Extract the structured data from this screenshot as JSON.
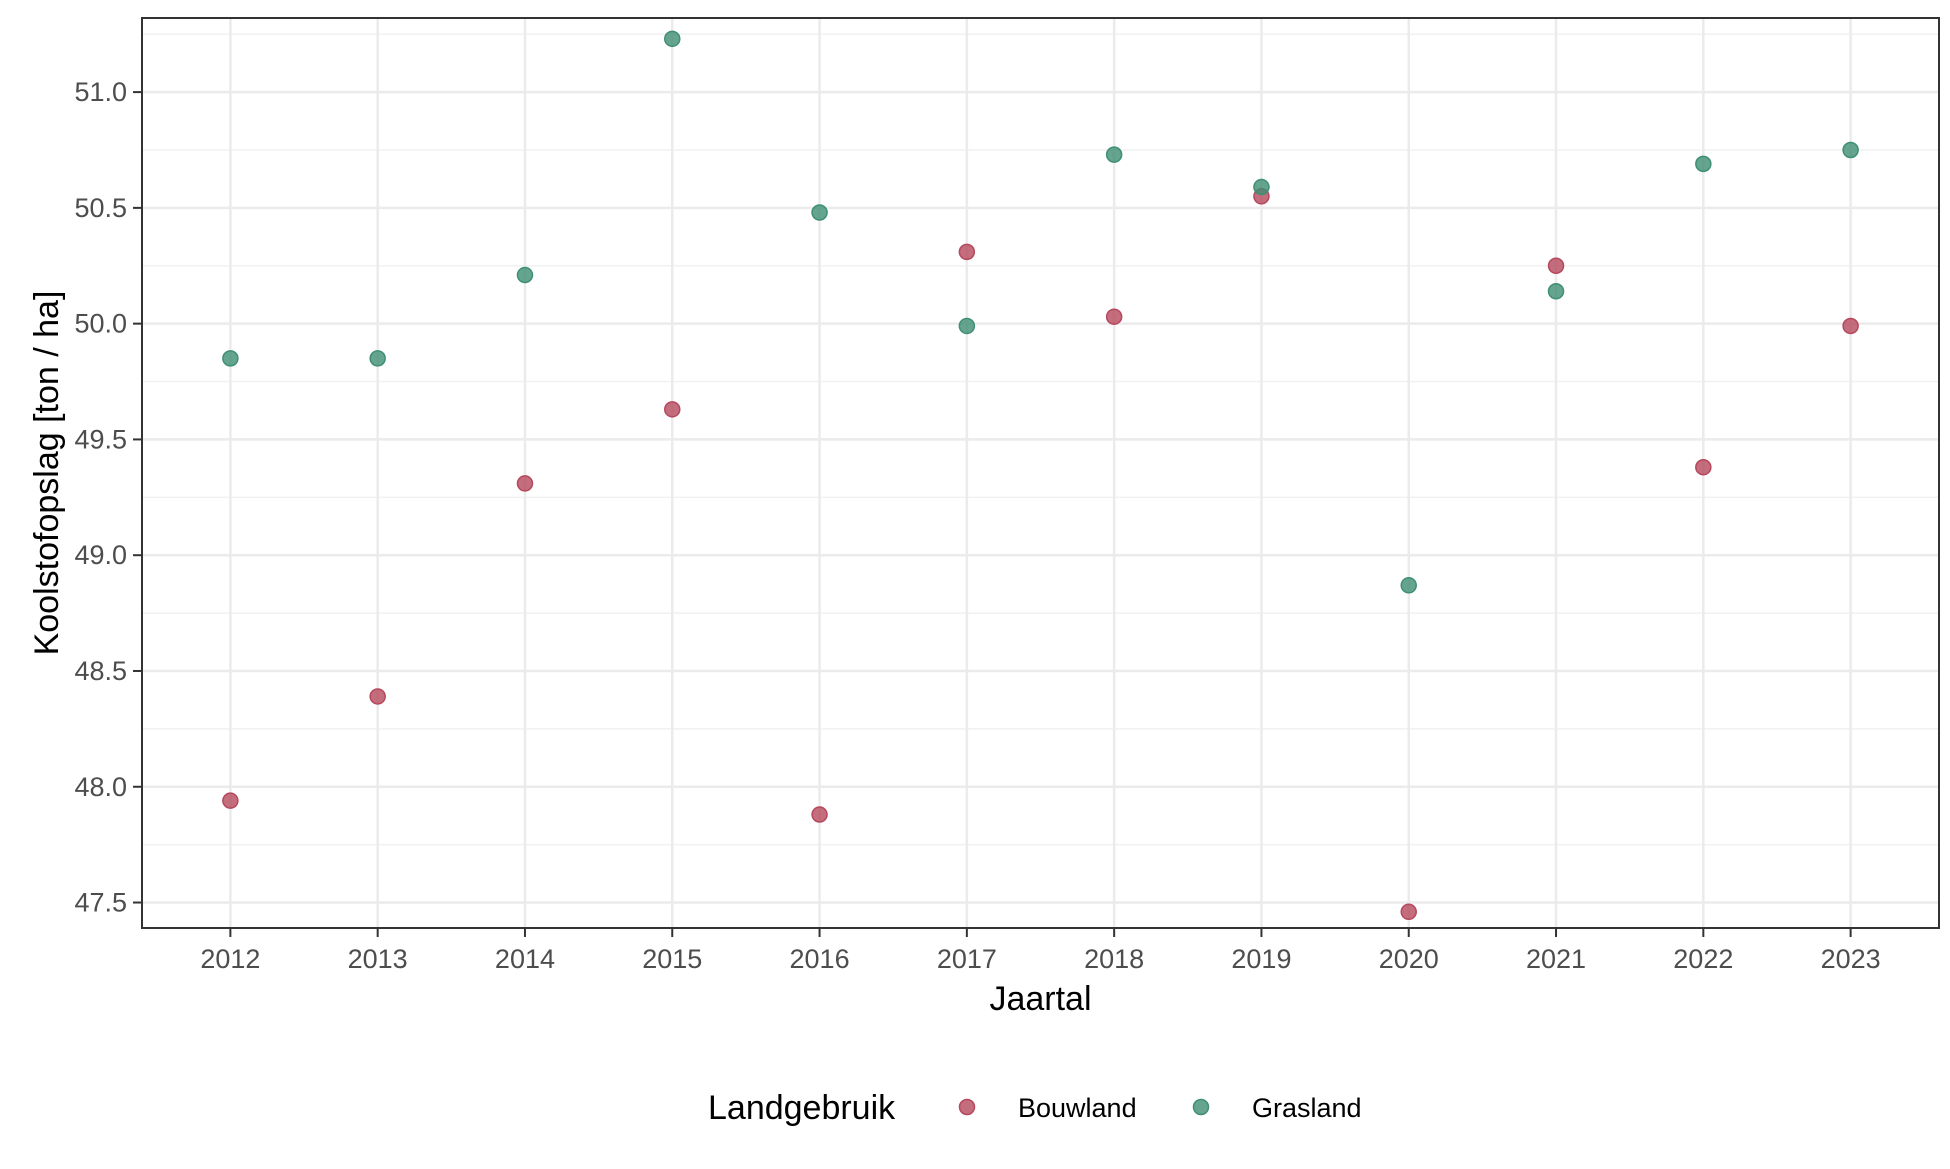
{
  "chart_data": {
    "type": "scatter",
    "title": "",
    "xlabel": "Jaartal",
    "ylabel": "Koolstofopslag [ton / ha]",
    "x": [
      2012,
      2013,
      2014,
      2015,
      2016,
      2017,
      2018,
      2019,
      2020,
      2021,
      2022,
      2023
    ],
    "x_tick_labels": [
      "2012",
      "2013",
      "2014",
      "2015",
      "2016",
      "2017",
      "2018",
      "2019",
      "2020",
      "2021",
      "2022",
      "2023"
    ],
    "y_ticks": [
      47.5,
      48.0,
      48.5,
      49.0,
      49.5,
      50.0,
      50.5,
      51.0
    ],
    "y_tick_labels": [
      "47.5",
      "48.0",
      "48.5",
      "49.0",
      "49.5",
      "50.0",
      "50.5",
      "51.0"
    ],
    "xlim": [
      2011.4,
      2023.6
    ],
    "ylim": [
      47.39,
      51.32
    ],
    "grid": true,
    "legend": {
      "title": "Landgebruik",
      "position": "bottom"
    },
    "series": [
      {
        "name": "Bouwland",
        "color": "#b5485c",
        "values": [
          47.94,
          48.39,
          49.31,
          49.63,
          47.88,
          50.31,
          50.03,
          50.55,
          47.46,
          50.25,
          49.38,
          49.99
        ]
      },
      {
        "name": "Grasland",
        "color": "#3f8f73",
        "values": [
          49.85,
          49.85,
          50.21,
          51.23,
          50.48,
          49.99,
          50.73,
          50.59,
          48.87,
          50.14,
          50.69,
          50.75
        ]
      }
    ]
  }
}
